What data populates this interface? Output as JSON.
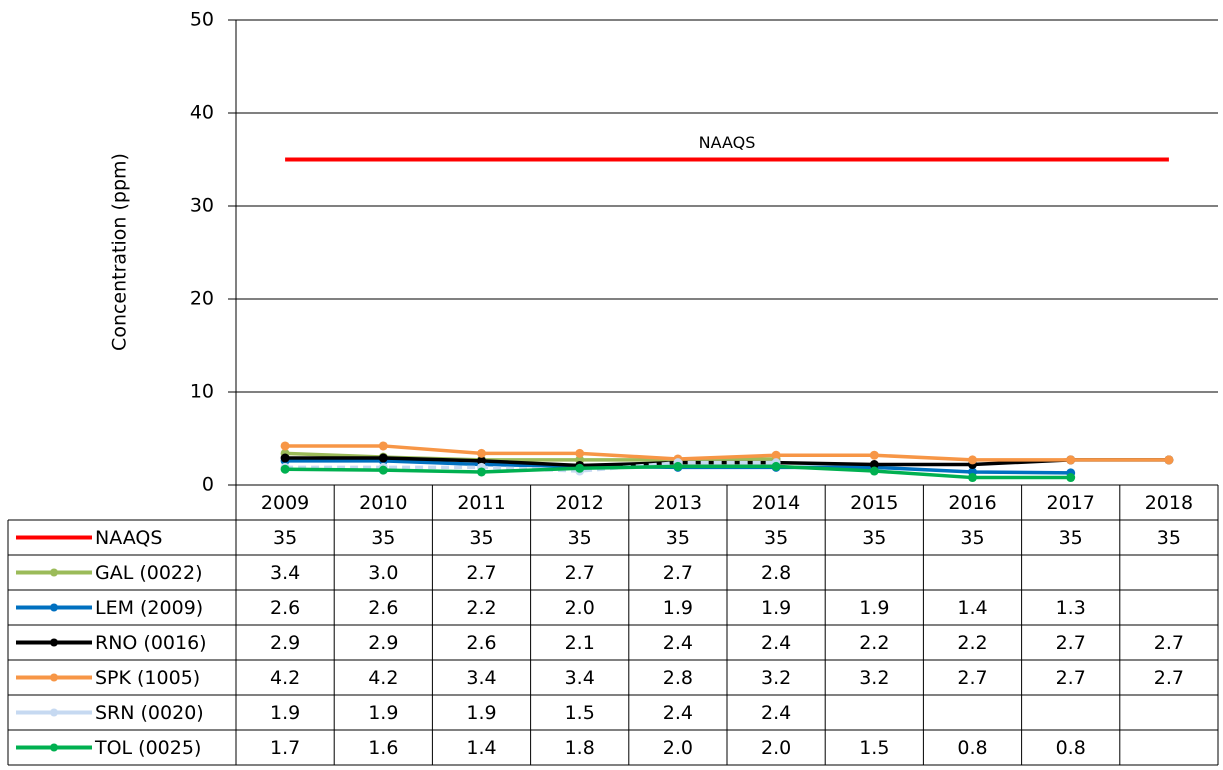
{
  "chart_data": {
    "type": "line",
    "y_label": "Concentration (ppm)",
    "annotation": "NAAQS",
    "categories": [
      "2009",
      "2010",
      "2011",
      "2012",
      "2013",
      "2014",
      "2015",
      "2016",
      "2017",
      "2018"
    ],
    "ylim": [
      0,
      50
    ],
    "yticks": [
      0,
      10,
      20,
      30,
      40,
      50
    ],
    "grid": true,
    "series": [
      {
        "name": "NAAQS",
        "color": "#ff0000",
        "markers": false,
        "values": [
          35,
          35,
          35,
          35,
          35,
          35,
          35,
          35,
          35,
          35
        ]
      },
      {
        "name": "GAL (0022)",
        "color": "#9bbb59",
        "markers": true,
        "values": [
          3.4,
          3,
          2.7,
          2.7,
          2.7,
          2.8,
          null,
          null,
          null,
          null
        ],
        "value_labels": [
          "3.4",
          "3.0",
          "2.7",
          "2.7",
          "2.7",
          "2.8",
          null,
          null,
          null,
          null
        ]
      },
      {
        "name": "LEM (2009)",
        "color": "#0070c0",
        "markers": true,
        "values": [
          2.6,
          2.6,
          2.2,
          2,
          1.9,
          1.9,
          1.9,
          1.4,
          1.3,
          null
        ],
        "value_labels": [
          "2.6",
          "2.6",
          "2.2",
          "2.0",
          "1.9",
          "1.9",
          "1.9",
          "1.4",
          "1.3",
          null
        ]
      },
      {
        "name": "RNO (0016)",
        "color": "#000000",
        "markers": true,
        "values": [
          2.9,
          2.9,
          2.6,
          2.1,
          2.4,
          2.4,
          2.2,
          2.2,
          2.7,
          2.7
        ]
      },
      {
        "name": "SPK (1005)",
        "color": "#f79646",
        "markers": true,
        "values": [
          4.2,
          4.2,
          3.4,
          3.4,
          2.8,
          3.2,
          3.2,
          2.7,
          2.7,
          2.7
        ]
      },
      {
        "name": "SRN (0020)",
        "color": "#c6d9f1",
        "markers": true,
        "values": [
          1.9,
          1.9,
          1.9,
          1.5,
          2.4,
          2.4,
          null,
          null,
          null,
          null
        ]
      },
      {
        "name": "TOL (0025)",
        "color": "#00b050",
        "markers": true,
        "values": [
          1.7,
          1.6,
          1.4,
          1.8,
          2,
          2,
          1.5,
          0.8,
          0.8,
          null
        ],
        "value_labels": [
          "1.7",
          "1.6",
          "1.4",
          "1.8",
          "2.0",
          "2.0",
          "1.5",
          "0.8",
          "0.8",
          null
        ]
      }
    ]
  }
}
